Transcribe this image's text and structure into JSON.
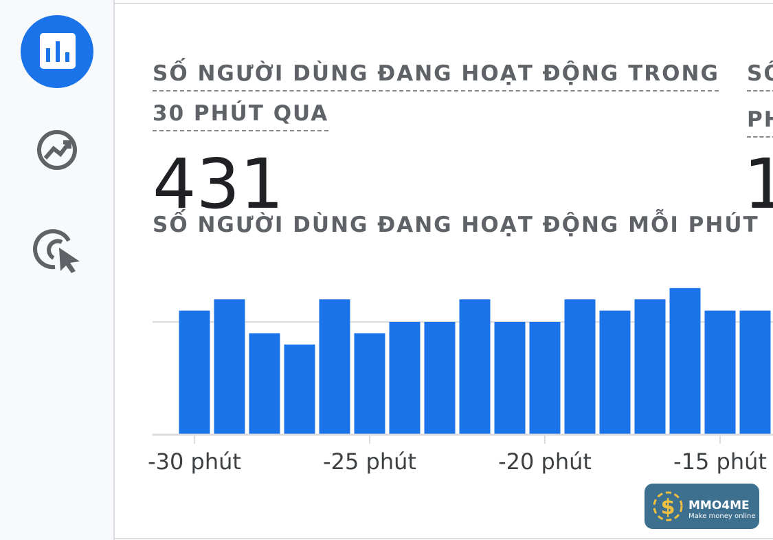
{
  "card": {
    "title": "SỐ NGƯỜI DÙNG ĐANG HOẠT ĐỘNG TRONG 30 PHÚT QUA",
    "value": "431"
  },
  "next_card": {
    "title_lines": [
      "SỐ",
      "PH"
    ],
    "value": "1"
  },
  "chart_data": {
    "type": "bar",
    "title": "SỐ NGƯỜI DÙNG ĐANG HOẠT ĐỘNG MỖI PHÚT",
    "categories": [
      "-30 phút",
      null,
      null,
      null,
      null,
      "-25 phút",
      null,
      null,
      null,
      null,
      "-20 phút",
      null,
      null,
      null,
      null,
      "-15 phút",
      null
    ],
    "values": [
      11,
      12,
      9,
      8,
      12,
      9,
      10,
      10,
      12,
      10,
      10,
      12,
      11,
      12,
      13,
      11,
      11
    ],
    "color": "#1a73e8",
    "ylim": [
      0,
      20
    ],
    "yticks": [
      0,
      10
    ],
    "grid": true
  },
  "watermark": {
    "name": "MMO4ME",
    "tagline": "Make money online"
  }
}
